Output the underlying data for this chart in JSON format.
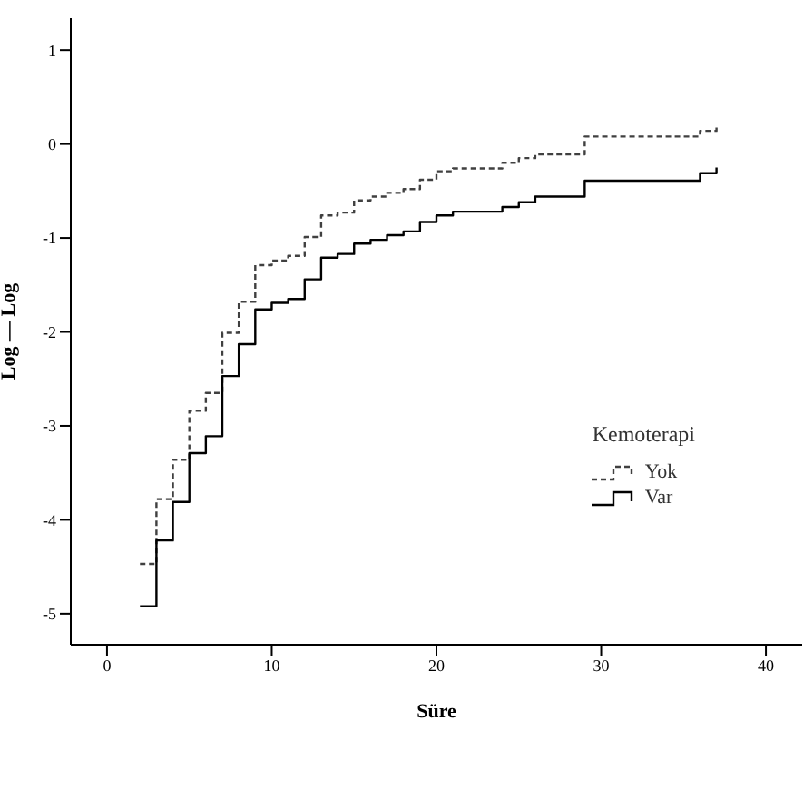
{
  "chart_data": {
    "type": "step",
    "xlabel": "Süre",
    "ylabel": "Log — Log",
    "legend_title": "Kemoterapi",
    "legend": "right",
    "xlim": [
      -2.2,
      42.2
    ],
    "xticks": [
      0,
      10,
      20,
      30,
      40
    ],
    "ylim": [
      -5.33,
      1.34
    ],
    "yticks": [
      -5,
      -4,
      -3,
      -2,
      -1,
      0,
      1
    ],
    "grid": false,
    "series": [
      {
        "name": "Yok",
        "color": "#404040",
        "line_style": "dashed",
        "x": [
          2,
          3,
          4,
          5,
          6,
          7,
          8,
          9,
          10,
          11,
          12,
          13,
          14,
          15,
          16,
          17,
          18,
          19,
          20,
          21,
          24,
          25,
          26,
          29,
          36,
          37
        ],
        "values": [
          -4.47,
          -3.78,
          -3.36,
          -2.84,
          -2.65,
          -2.01,
          -1.68,
          -1.29,
          -1.24,
          -1.19,
          -0.99,
          -0.76,
          -0.73,
          -0.6,
          -0.56,
          -0.52,
          -0.48,
          -0.38,
          -0.29,
          -0.26,
          -0.2,
          -0.15,
          -0.11,
          0.08,
          0.14,
          0.21
        ]
      },
      {
        "name": "Var",
        "color": "#000000",
        "line_style": "solid",
        "x": [
          2,
          3,
          4,
          5,
          6,
          7,
          8,
          9,
          10,
          11,
          12,
          13,
          14,
          15,
          16,
          17,
          18,
          19,
          20,
          21,
          24,
          25,
          26,
          29,
          36,
          37
        ],
        "values": [
          -4.92,
          -4.22,
          -3.81,
          -3.29,
          -3.11,
          -2.47,
          -2.13,
          -1.76,
          -1.69,
          -1.65,
          -1.44,
          -1.21,
          -1.17,
          -1.06,
          -1.02,
          -0.97,
          -0.93,
          -0.83,
          -0.76,
          -0.72,
          -0.67,
          -0.62,
          -0.56,
          -0.39,
          -0.31,
          -0.25
        ]
      }
    ]
  }
}
